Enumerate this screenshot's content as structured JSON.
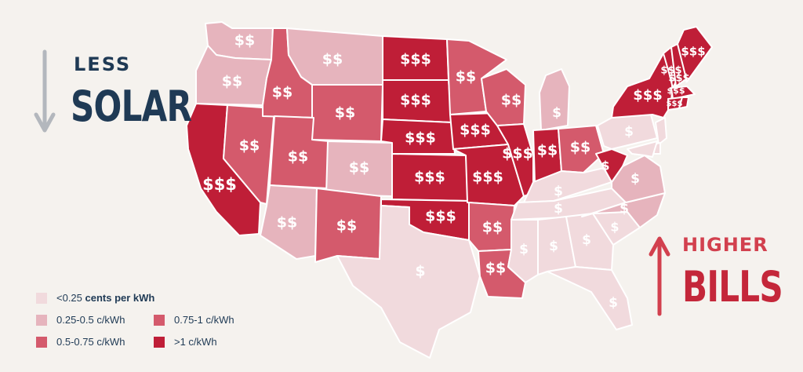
{
  "headline_left": {
    "small": "LESS",
    "big": "SOLAR"
  },
  "headline_right": {
    "small": "HIGHER",
    "big": "BILLS"
  },
  "colors": {
    "tier1": "#f1dadd",
    "tier2": "#e6b4bd",
    "tier3": "#d45a6c",
    "tier4": "#bf1e37",
    "navy": "#1f3a55",
    "accent": "#d2404e",
    "background": "#f5f2ee"
  },
  "legend": [
    {
      "label_bold": "",
      "label_prefix": "<0.25 ",
      "label_strong": "cents per kWh",
      "tier": "tier1"
    },
    {
      "label_prefix": "0.25-0.5 c/kWh",
      "label_strong": "",
      "tier": "tier2"
    },
    {
      "label_prefix": "0.5-0.75 c/kWh",
      "label_strong": "",
      "tier": "tier3"
    },
    {
      "label_prefix": "0.75-1 c/kWh",
      "label_strong": "",
      "tier": "tier3"
    },
    {
      "label_prefix": ">1 c/kWh",
      "label_strong": "",
      "tier": "tier4"
    }
  ],
  "states": [
    {
      "name": "WA",
      "tier": "tier2",
      "symbol": "$$"
    },
    {
      "name": "OR",
      "tier": "tier2",
      "symbol": "$$"
    },
    {
      "name": "CA",
      "tier": "tier4",
      "symbol": "$$$"
    },
    {
      "name": "NV",
      "tier": "tier3",
      "symbol": "$$"
    },
    {
      "name": "ID",
      "tier": "tier3",
      "symbol": "$$"
    },
    {
      "name": "MT",
      "tier": "tier2",
      "symbol": "$$"
    },
    {
      "name": "WY",
      "tier": "tier3",
      "symbol": "$$"
    },
    {
      "name": "UT",
      "tier": "tier3",
      "symbol": "$$"
    },
    {
      "name": "AZ",
      "tier": "tier2",
      "symbol": "$$"
    },
    {
      "name": "CO",
      "tier": "tier2",
      "symbol": "$$"
    },
    {
      "name": "NM",
      "tier": "tier3",
      "symbol": "$$"
    },
    {
      "name": "ND",
      "tier": "tier4",
      "symbol": "$$$"
    },
    {
      "name": "SD",
      "tier": "tier4",
      "symbol": "$$$"
    },
    {
      "name": "NE",
      "tier": "tier4",
      "symbol": "$$$"
    },
    {
      "name": "KS",
      "tier": "tier4",
      "symbol": "$$$"
    },
    {
      "name": "OK",
      "tier": "tier4",
      "symbol": "$$$"
    },
    {
      "name": "TX",
      "tier": "tier1",
      "symbol": "$"
    },
    {
      "name": "MN",
      "tier": "tier3",
      "symbol": "$$"
    },
    {
      "name": "IA",
      "tier": "tier4",
      "symbol": "$$$"
    },
    {
      "name": "MO",
      "tier": "tier4",
      "symbol": "$$$"
    },
    {
      "name": "AR",
      "tier": "tier3",
      "symbol": "$$"
    },
    {
      "name": "LA",
      "tier": "tier3",
      "symbol": "$$"
    },
    {
      "name": "WI",
      "tier": "tier3",
      "symbol": "$$"
    },
    {
      "name": "IL",
      "tier": "tier4",
      "symbol": "$$$"
    },
    {
      "name": "MI",
      "tier": "tier2",
      "symbol": "$"
    },
    {
      "name": "IN",
      "tier": "tier4",
      "symbol": "$$"
    },
    {
      "name": "OH",
      "tier": "tier3",
      "symbol": "$$"
    },
    {
      "name": "KY",
      "tier": "tier1",
      "symbol": "$"
    },
    {
      "name": "TN",
      "tier": "tier1",
      "symbol": "$"
    },
    {
      "name": "MS",
      "tier": "tier1",
      "symbol": "$"
    },
    {
      "name": "AL",
      "tier": "tier1",
      "symbol": "$"
    },
    {
      "name": "GA",
      "tier": "tier1",
      "symbol": "$"
    },
    {
      "name": "FL",
      "tier": "tier1",
      "symbol": "$"
    },
    {
      "name": "SC",
      "tier": "tier1",
      "symbol": "$"
    },
    {
      "name": "NC",
      "tier": "tier2",
      "symbol": "$"
    },
    {
      "name": "VA",
      "tier": "tier2",
      "symbol": "$"
    },
    {
      "name": "WV",
      "tier": "tier4",
      "symbol": "$"
    },
    {
      "name": "PA",
      "tier": "tier1",
      "symbol": "$"
    },
    {
      "name": "NY",
      "tier": "tier4",
      "symbol": "$$$"
    },
    {
      "name": "VT",
      "tier": "tier4",
      "symbol": "$$$"
    },
    {
      "name": "NH",
      "tier": "tier4",
      "symbol": "$$$"
    },
    {
      "name": "ME",
      "tier": "tier4",
      "symbol": "$$$"
    },
    {
      "name": "MA",
      "tier": "tier4",
      "symbol": "$$$"
    },
    {
      "name": "CT",
      "tier": "tier4",
      "symbol": "$$$"
    },
    {
      "name": "RI",
      "tier": "tier4",
      "symbol": ""
    },
    {
      "name": "NJ",
      "tier": "tier1",
      "symbol": ""
    },
    {
      "name": "DE",
      "tier": "tier1",
      "symbol": ""
    },
    {
      "name": "MD",
      "tier": "tier1",
      "symbol": ""
    }
  ]
}
